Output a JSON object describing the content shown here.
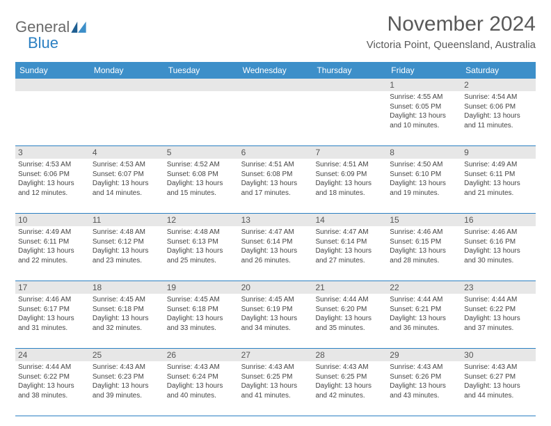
{
  "brand": {
    "part1": "General",
    "part2": "Blue"
  },
  "title": "November 2024",
  "location": "Victoria Point, Queensland, Australia",
  "colors": {
    "header_bg": "#3d8fc9",
    "header_text": "#ffffff",
    "stripe_bg": "#e7e7e7",
    "rule": "#2a7fc2",
    "title_color": "#595959",
    "brand_gray": "#6a6a6a",
    "brand_blue": "#2a7fc2",
    "body_text": "#444444"
  },
  "dow": [
    "Sunday",
    "Monday",
    "Tuesday",
    "Wednesday",
    "Thursday",
    "Friday",
    "Saturday"
  ],
  "weeks": [
    [
      null,
      null,
      null,
      null,
      null,
      {
        "n": "1",
        "sunrise": "Sunrise: 4:55 AM",
        "sunset": "Sunset: 6:05 PM",
        "day1": "Daylight: 13 hours",
        "day2": "and 10 minutes."
      },
      {
        "n": "2",
        "sunrise": "Sunrise: 4:54 AM",
        "sunset": "Sunset: 6:06 PM",
        "day1": "Daylight: 13 hours",
        "day2": "and 11 minutes."
      }
    ],
    [
      {
        "n": "3",
        "sunrise": "Sunrise: 4:53 AM",
        "sunset": "Sunset: 6:06 PM",
        "day1": "Daylight: 13 hours",
        "day2": "and 12 minutes."
      },
      {
        "n": "4",
        "sunrise": "Sunrise: 4:53 AM",
        "sunset": "Sunset: 6:07 PM",
        "day1": "Daylight: 13 hours",
        "day2": "and 14 minutes."
      },
      {
        "n": "5",
        "sunrise": "Sunrise: 4:52 AM",
        "sunset": "Sunset: 6:08 PM",
        "day1": "Daylight: 13 hours",
        "day2": "and 15 minutes."
      },
      {
        "n": "6",
        "sunrise": "Sunrise: 4:51 AM",
        "sunset": "Sunset: 6:08 PM",
        "day1": "Daylight: 13 hours",
        "day2": "and 17 minutes."
      },
      {
        "n": "7",
        "sunrise": "Sunrise: 4:51 AM",
        "sunset": "Sunset: 6:09 PM",
        "day1": "Daylight: 13 hours",
        "day2": "and 18 minutes."
      },
      {
        "n": "8",
        "sunrise": "Sunrise: 4:50 AM",
        "sunset": "Sunset: 6:10 PM",
        "day1": "Daylight: 13 hours",
        "day2": "and 19 minutes."
      },
      {
        "n": "9",
        "sunrise": "Sunrise: 4:49 AM",
        "sunset": "Sunset: 6:11 PM",
        "day1": "Daylight: 13 hours",
        "day2": "and 21 minutes."
      }
    ],
    [
      {
        "n": "10",
        "sunrise": "Sunrise: 4:49 AM",
        "sunset": "Sunset: 6:11 PM",
        "day1": "Daylight: 13 hours",
        "day2": "and 22 minutes."
      },
      {
        "n": "11",
        "sunrise": "Sunrise: 4:48 AM",
        "sunset": "Sunset: 6:12 PM",
        "day1": "Daylight: 13 hours",
        "day2": "and 23 minutes."
      },
      {
        "n": "12",
        "sunrise": "Sunrise: 4:48 AM",
        "sunset": "Sunset: 6:13 PM",
        "day1": "Daylight: 13 hours",
        "day2": "and 25 minutes."
      },
      {
        "n": "13",
        "sunrise": "Sunrise: 4:47 AM",
        "sunset": "Sunset: 6:14 PM",
        "day1": "Daylight: 13 hours",
        "day2": "and 26 minutes."
      },
      {
        "n": "14",
        "sunrise": "Sunrise: 4:47 AM",
        "sunset": "Sunset: 6:14 PM",
        "day1": "Daylight: 13 hours",
        "day2": "and 27 minutes."
      },
      {
        "n": "15",
        "sunrise": "Sunrise: 4:46 AM",
        "sunset": "Sunset: 6:15 PM",
        "day1": "Daylight: 13 hours",
        "day2": "and 28 minutes."
      },
      {
        "n": "16",
        "sunrise": "Sunrise: 4:46 AM",
        "sunset": "Sunset: 6:16 PM",
        "day1": "Daylight: 13 hours",
        "day2": "and 30 minutes."
      }
    ],
    [
      {
        "n": "17",
        "sunrise": "Sunrise: 4:46 AM",
        "sunset": "Sunset: 6:17 PM",
        "day1": "Daylight: 13 hours",
        "day2": "and 31 minutes."
      },
      {
        "n": "18",
        "sunrise": "Sunrise: 4:45 AM",
        "sunset": "Sunset: 6:18 PM",
        "day1": "Daylight: 13 hours",
        "day2": "and 32 minutes."
      },
      {
        "n": "19",
        "sunrise": "Sunrise: 4:45 AM",
        "sunset": "Sunset: 6:18 PM",
        "day1": "Daylight: 13 hours",
        "day2": "and 33 minutes."
      },
      {
        "n": "20",
        "sunrise": "Sunrise: 4:45 AM",
        "sunset": "Sunset: 6:19 PM",
        "day1": "Daylight: 13 hours",
        "day2": "and 34 minutes."
      },
      {
        "n": "21",
        "sunrise": "Sunrise: 4:44 AM",
        "sunset": "Sunset: 6:20 PM",
        "day1": "Daylight: 13 hours",
        "day2": "and 35 minutes."
      },
      {
        "n": "22",
        "sunrise": "Sunrise: 4:44 AM",
        "sunset": "Sunset: 6:21 PM",
        "day1": "Daylight: 13 hours",
        "day2": "and 36 minutes."
      },
      {
        "n": "23",
        "sunrise": "Sunrise: 4:44 AM",
        "sunset": "Sunset: 6:22 PM",
        "day1": "Daylight: 13 hours",
        "day2": "and 37 minutes."
      }
    ],
    [
      {
        "n": "24",
        "sunrise": "Sunrise: 4:44 AM",
        "sunset": "Sunset: 6:22 PM",
        "day1": "Daylight: 13 hours",
        "day2": "and 38 minutes."
      },
      {
        "n": "25",
        "sunrise": "Sunrise: 4:43 AM",
        "sunset": "Sunset: 6:23 PM",
        "day1": "Daylight: 13 hours",
        "day2": "and 39 minutes."
      },
      {
        "n": "26",
        "sunrise": "Sunrise: 4:43 AM",
        "sunset": "Sunset: 6:24 PM",
        "day1": "Daylight: 13 hours",
        "day2": "and 40 minutes."
      },
      {
        "n": "27",
        "sunrise": "Sunrise: 4:43 AM",
        "sunset": "Sunset: 6:25 PM",
        "day1": "Daylight: 13 hours",
        "day2": "and 41 minutes."
      },
      {
        "n": "28",
        "sunrise": "Sunrise: 4:43 AM",
        "sunset": "Sunset: 6:25 PM",
        "day1": "Daylight: 13 hours",
        "day2": "and 42 minutes."
      },
      {
        "n": "29",
        "sunrise": "Sunrise: 4:43 AM",
        "sunset": "Sunset: 6:26 PM",
        "day1": "Daylight: 13 hours",
        "day2": "and 43 minutes."
      },
      {
        "n": "30",
        "sunrise": "Sunrise: 4:43 AM",
        "sunset": "Sunset: 6:27 PM",
        "day1": "Daylight: 13 hours",
        "day2": "and 44 minutes."
      }
    ]
  ]
}
